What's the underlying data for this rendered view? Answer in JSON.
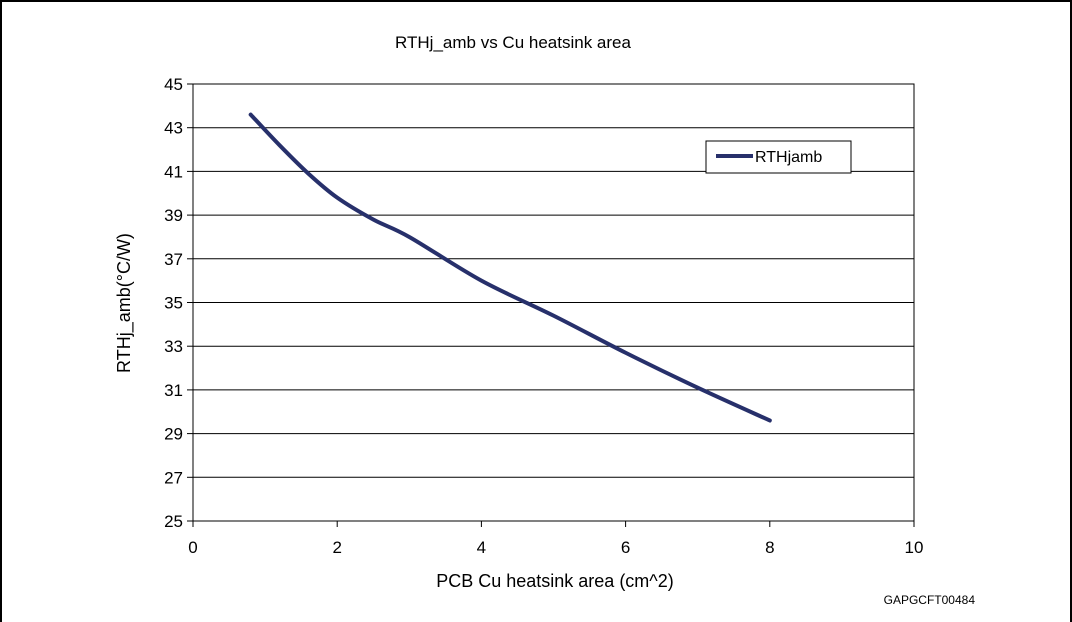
{
  "figure_code": "GAPGCFT00484",
  "chart_data": {
    "type": "line",
    "title": "RTHj_amb vs Cu heatsink area",
    "xlabel": "PCB Cu heatsink area (cm^2)",
    "ylabel": "RTHj_amb(°C/W)",
    "xlim": [
      0,
      10
    ],
    "ylim": [
      25,
      45
    ],
    "x_ticks": [
      "0",
      "2",
      "4",
      "6",
      "8",
      "10"
    ],
    "y_ticks": [
      "25",
      "27",
      "29",
      "31",
      "33",
      "35",
      "37",
      "39",
      "41",
      "43",
      "45"
    ],
    "grid": "horizontal",
    "legend_position": "top-right",
    "line_color": "#27306b",
    "series": [
      {
        "name": "RTHjamb",
        "x": [
          0.8,
          1.2,
          1.6,
          2.0,
          2.5,
          3.0,
          4.0,
          5.0,
          6.0,
          7.0,
          8.0
        ],
        "values": [
          43.6,
          42.2,
          40.9,
          39.8,
          38.8,
          38.0,
          36.0,
          34.4,
          32.7,
          31.1,
          29.6
        ]
      }
    ]
  }
}
